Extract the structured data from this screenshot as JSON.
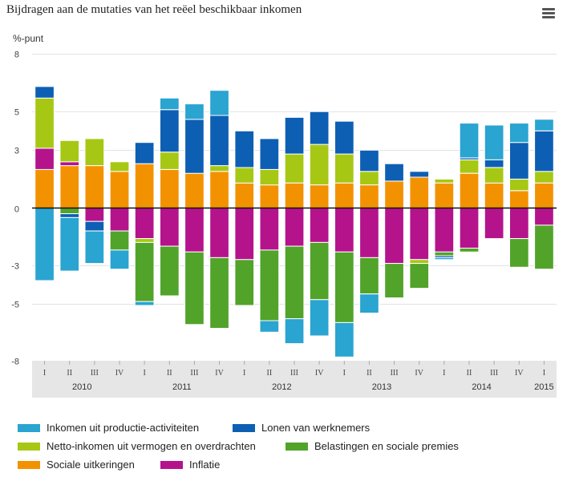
{
  "title": "Bijdragen aan de mutaties van het reëel beschikbaar inkomen",
  "menu_icon": "hamburger-menu-icon",
  "chart_data": {
    "type": "bar",
    "stacked": true,
    "ylabel": "%-punt",
    "ylim": [
      -8,
      8
    ],
    "yticks": [
      8,
      5,
      3,
      0,
      -3,
      -5,
      -8
    ],
    "quarters": [
      "I",
      "II",
      "III",
      "IV",
      "I",
      "II",
      "III",
      "IV",
      "I",
      "II",
      "III",
      "IV",
      "I",
      "II",
      "III",
      "IV",
      "I",
      "II",
      "III",
      "IV",
      "I"
    ],
    "years": [
      {
        "label": "2010",
        "from": 0,
        "to": 3
      },
      {
        "label": "2011",
        "from": 4,
        "to": 7
      },
      {
        "label": "2012",
        "from": 8,
        "to": 11
      },
      {
        "label": "2013",
        "from": 12,
        "to": 15
      },
      {
        "label": "2014",
        "from": 16,
        "to": 19
      },
      {
        "label": "2015",
        "from": 20,
        "to": 20
      }
    ],
    "series": [
      {
        "name": "Inkomen uit productie-activiteiten",
        "color": "#2aa4d0",
        "values": [
          -3.8,
          -2.8,
          -1.7,
          -1.0,
          -0.2,
          0.6,
          0.8,
          1.3,
          0,
          -0.6,
          -1.3,
          -1.9,
          -1.8,
          -1.0,
          0,
          0,
          -0.1,
          1.8,
          1.8,
          1.0,
          0.6
        ]
      },
      {
        "name": "Lonen van werknemers",
        "color": "#0d5fb4",
        "values": [
          0.6,
          -0.2,
          -0.5,
          0,
          1.1,
          2.2,
          2.8,
          2.6,
          1.9,
          1.6,
          1.9,
          1.7,
          1.7,
          1.1,
          0.9,
          0.3,
          -0.1,
          0.1,
          0.4,
          1.9,
          2.1
        ]
      },
      {
        "name": "Netto-inkomen uit vermogen en overdrachten",
        "color": "#a6c814",
        "values": [
          2.6,
          1.1,
          1.4,
          0.5,
          -0.2,
          0.9,
          0,
          0.3,
          0.8,
          0.8,
          1.5,
          2.1,
          1.5,
          0.7,
          0,
          -0.2,
          0.2,
          0.7,
          0.8,
          0.6,
          0.6
        ]
      },
      {
        "name": "Belastingen en sociale premies",
        "color": "#52a32a",
        "values": [
          0,
          -0.3,
          0,
          -1.0,
          -3.1,
          -2.6,
          -3.8,
          -3.7,
          -2.4,
          -3.7,
          -3.8,
          -3.0,
          -3.7,
          -1.9,
          -1.8,
          -1.3,
          -0.2,
          -0.2,
          0,
          -1.5,
          -2.3
        ]
      },
      {
        "name": "Sociale uitkeringen",
        "color": "#f39200",
        "values": [
          2.0,
          2.2,
          2.2,
          1.9,
          2.3,
          2.0,
          1.8,
          1.9,
          1.3,
          1.2,
          1.3,
          1.2,
          1.3,
          1.2,
          1.4,
          1.6,
          1.3,
          1.8,
          1.3,
          0.9,
          1.3
        ]
      },
      {
        "name": "Inflatie",
        "color": "#b5138c",
        "values": [
          1.1,
          0.2,
          -0.7,
          -1.2,
          -1.6,
          -2.0,
          -2.3,
          -2.6,
          -2.7,
          -2.2,
          -2.0,
          -1.8,
          -2.3,
          -2.6,
          -2.9,
          -2.7,
          -2.3,
          -2.1,
          -1.6,
          -1.6,
          -0.9
        ]
      }
    ],
    "legend": "bottom"
  }
}
